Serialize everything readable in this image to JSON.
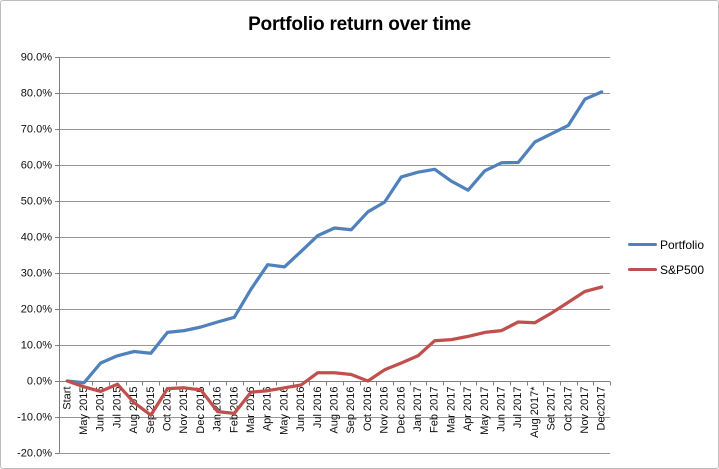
{
  "chart_data": {
    "type": "line",
    "title": "Portfolio return over time",
    "xlabel": "",
    "ylabel": "",
    "grid": true,
    "legend_position": "right",
    "ylim": [
      -20,
      90
    ],
    "ytick_step": 10,
    "x_axis_cross_value": 0,
    "yticks": [
      {
        "value": 90,
        "label": "90.0%"
      },
      {
        "value": 80,
        "label": "80.0%"
      },
      {
        "value": 70,
        "label": "70.0%"
      },
      {
        "value": 60,
        "label": "60.0%"
      },
      {
        "value": 50,
        "label": "50.0%"
      },
      {
        "value": 40,
        "label": "40.0%"
      },
      {
        "value": 30,
        "label": "30.0%"
      },
      {
        "value": 20,
        "label": "20.0%"
      },
      {
        "value": 10,
        "label": "10.0%"
      },
      {
        "value": 0,
        "label": "0.0%"
      },
      {
        "value": -10,
        "label": "-10.0%"
      },
      {
        "value": -20,
        "label": "-20.0%"
      }
    ],
    "categories": [
      "Start",
      "May 2015",
      "Jun 2015",
      "Jul 2015",
      "Aug 2015",
      "Sep 2015",
      "Oct 2015",
      "Nov 2015",
      "Dec 2015",
      "Jan 2016",
      "Feb 2016",
      "Mar 2016",
      "Apr 2016",
      "May 2016",
      "Jun 2016",
      "Jul 2016",
      "Aug 2016",
      "Sep 2016",
      "Oct 2016",
      "Nov 2016",
      "Dec 2016",
      "Jan 2017",
      "Feb 2017",
      "Mar 2017",
      "Apr 2017",
      "May 2017",
      "Jun 2017",
      "Jul 2017",
      "Aug 2017*",
      "Set 2017",
      "Oct 2017",
      "Nov 2017",
      "Dec2017"
    ],
    "series": [
      {
        "name": "Portfolio",
        "color": "#4F81BD",
        "values": [
          0,
          -0.5,
          5,
          7,
          8.2,
          7.7,
          13.5,
          14,
          15,
          16.4,
          17.7,
          25.5,
          32.3,
          31.7,
          36,
          40.4,
          42.5,
          42,
          47,
          49.7,
          56.7,
          58,
          58.8,
          55.5,
          53,
          58.4,
          60.6,
          60.7,
          66.4,
          68.7,
          71,
          78.3,
          80.3
        ]
      },
      {
        "name": "S&P500",
        "color": "#C0504D",
        "values": [
          0,
          -1.6,
          -2.9,
          -0.9,
          -6,
          -9.5,
          -2.1,
          -1.9,
          -2.5,
          -8.5,
          -9,
          -3.1,
          -2.7,
          -1.9,
          -1.1,
          2.3,
          2.3,
          1.8,
          0,
          3.1,
          5,
          7,
          11.2,
          11.5,
          12.4,
          13.5,
          14,
          16.4,
          16.2,
          18.9,
          21.9,
          24.9,
          26.1
        ]
      }
    ],
    "colors": {
      "gridline": "#969696",
      "axis": "#7F7F7F",
      "tick_label": "#0d0d0d"
    }
  }
}
